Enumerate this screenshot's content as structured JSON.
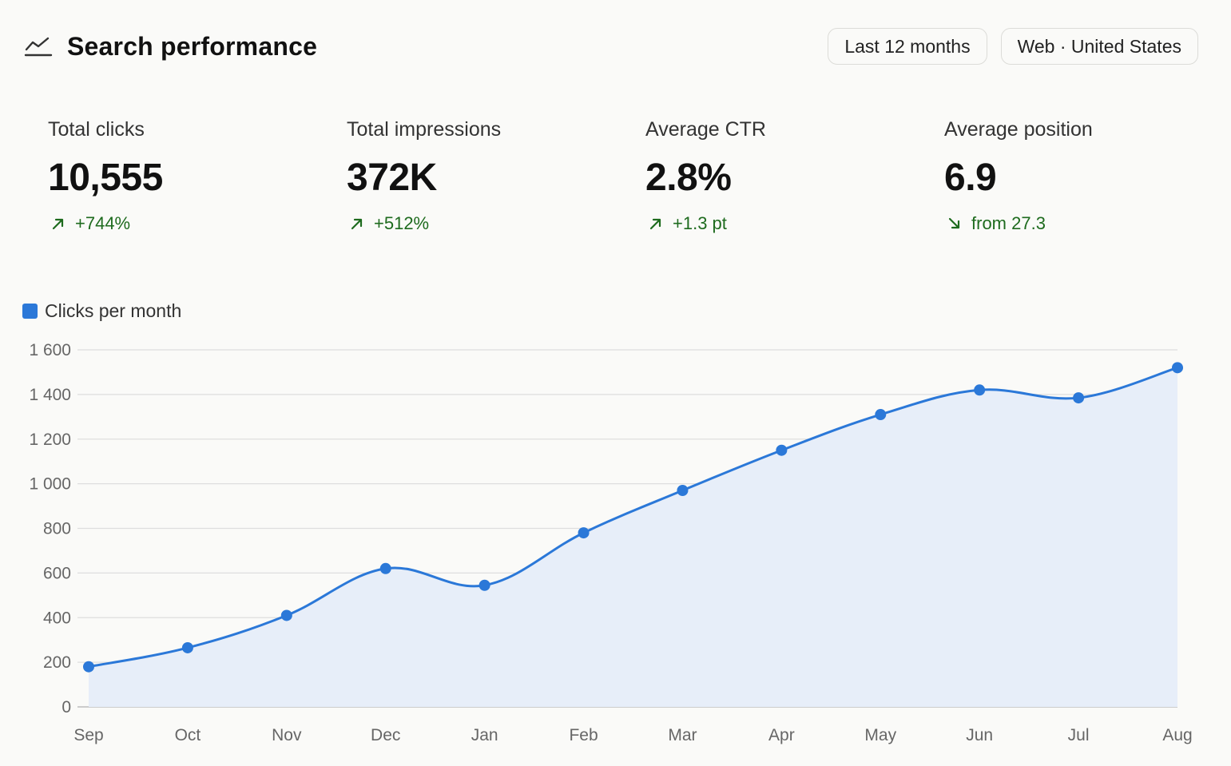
{
  "header": {
    "title": "Search performance",
    "icon": "trend-line-icon",
    "range_label": "Last 12 months",
    "filter_label": "Web · United States"
  },
  "stats": [
    {
      "label": "Total clicks",
      "value": "10,555",
      "delta": "+744%",
      "direction": "up"
    },
    {
      "label": "Total impressions",
      "value": "372K",
      "delta": "+512%",
      "direction": "up"
    },
    {
      "label": "Average CTR",
      "value": "2.8%",
      "delta": "+1.3 pt",
      "direction": "up"
    },
    {
      "label": "Average position",
      "value": "6.9",
      "delta": "from 27.3",
      "direction": "down"
    }
  ],
  "colors": {
    "accent": "#2b78d8",
    "area": "#e7eef9",
    "positive": "#1e6b1e"
  },
  "chart_data": {
    "type": "area",
    "legend": "Clicks per month",
    "categories": [
      "Sep",
      "Oct",
      "Nov",
      "Dec",
      "Jan",
      "Feb",
      "Mar",
      "Apr",
      "May",
      "Jun",
      "Jul",
      "Aug"
    ],
    "series": [
      {
        "name": "Clicks per month",
        "values": [
          180,
          265,
          410,
          620,
          545,
          780,
          970,
          1150,
          1310,
          1420,
          1385,
          1520
        ]
      }
    ],
    "y_ticks": [
      "0",
      "200",
      "400",
      "600",
      "800",
      "1 000",
      "1 200",
      "1 400",
      "1 600"
    ],
    "ylim": [
      0,
      1600
    ],
    "grid": true,
    "legend_position": "top-left"
  }
}
